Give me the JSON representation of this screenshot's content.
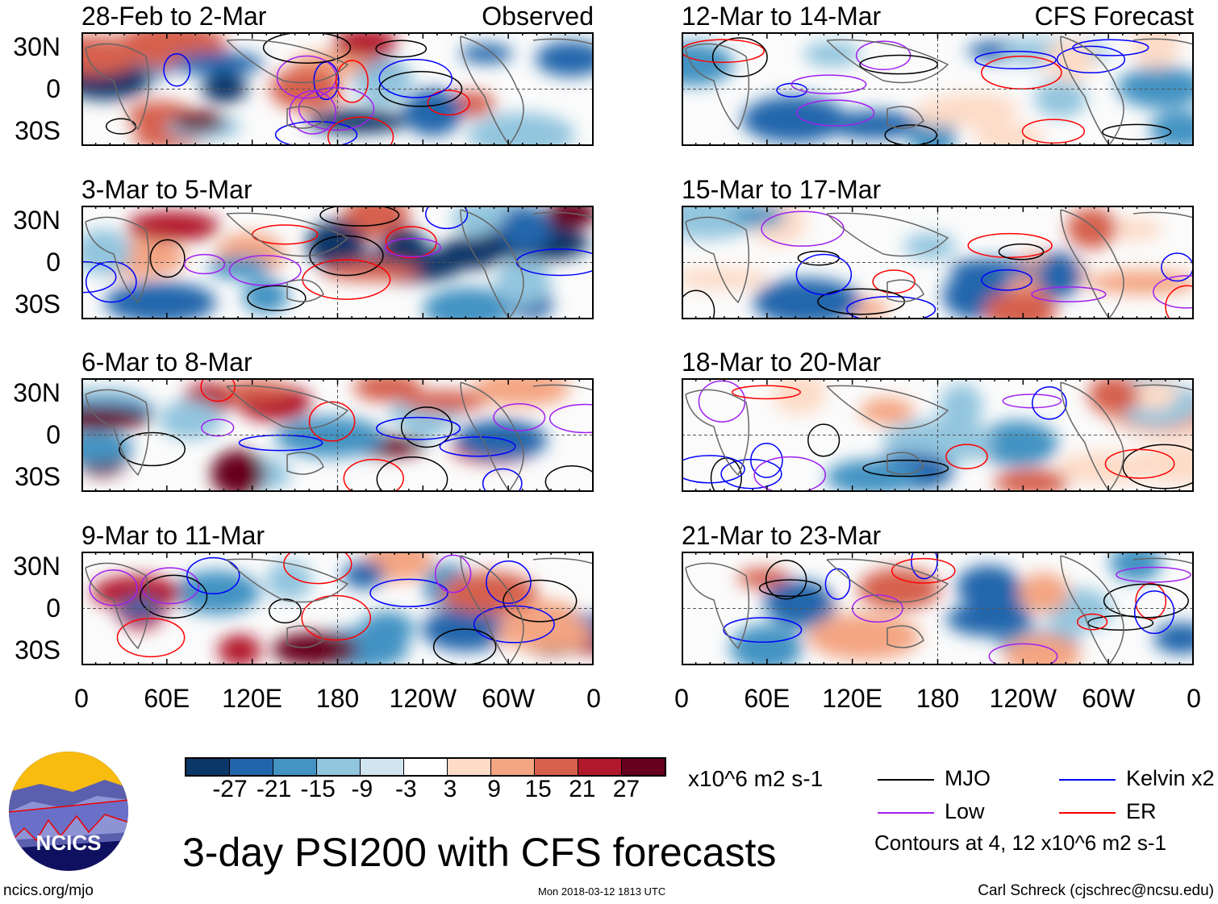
{
  "panels": [
    {
      "title": "28-Feb to 2-Mar",
      "tag": "Observed"
    },
    {
      "title": "3-Mar to 5-Mar"
    },
    {
      "title": "6-Mar to 8-Mar"
    },
    {
      "title": "9-Mar to 11-Mar"
    },
    {
      "title": "12-Mar to 14-Mar",
      "tag": "CFS Forecast"
    },
    {
      "title": "15-Mar to 17-Mar"
    },
    {
      "title": "18-Mar to 20-Mar"
    },
    {
      "title": "21-Mar to 23-Mar"
    }
  ],
  "lat_labels": [
    "30N",
    "0",
    "30S"
  ],
  "lon_labels": [
    "0",
    "60E",
    "120E",
    "180",
    "120W",
    "60W",
    "0"
  ],
  "colorbar": {
    "colors": [
      "#0b3668",
      "#2166ac",
      "#4393c3",
      "#92c5de",
      "#d1e5f0",
      "#ffffff",
      "#fddbc7",
      "#f4a582",
      "#d6604d",
      "#b2182b",
      "#67001f"
    ],
    "labels": [
      "-27",
      "-21",
      "-15",
      "-9",
      "-3",
      "3",
      "9",
      "15",
      "21",
      "27"
    ],
    "units": "x10^6 m2 s-1"
  },
  "legend": {
    "items": [
      {
        "label": "MJO",
        "color": "#000000"
      },
      {
        "label": "Kelvin x2",
        "color": "#0000ff"
      },
      {
        "label": "Low",
        "color": "#a020f0"
      },
      {
        "label": "ER",
        "color": "#ff0000"
      }
    ],
    "note": "Contours at 4, 12 x10^6 m2 s-1"
  },
  "title": "3-day PSI200 with CFS forecasts",
  "logo_text": "NCICS",
  "footer": {
    "url": "ncics.org/mjo",
    "timestamp": "Mon 2018-03-12 1813 UTC",
    "author": "Carl Schreck (cjschrec@ncsu.edu)"
  }
}
